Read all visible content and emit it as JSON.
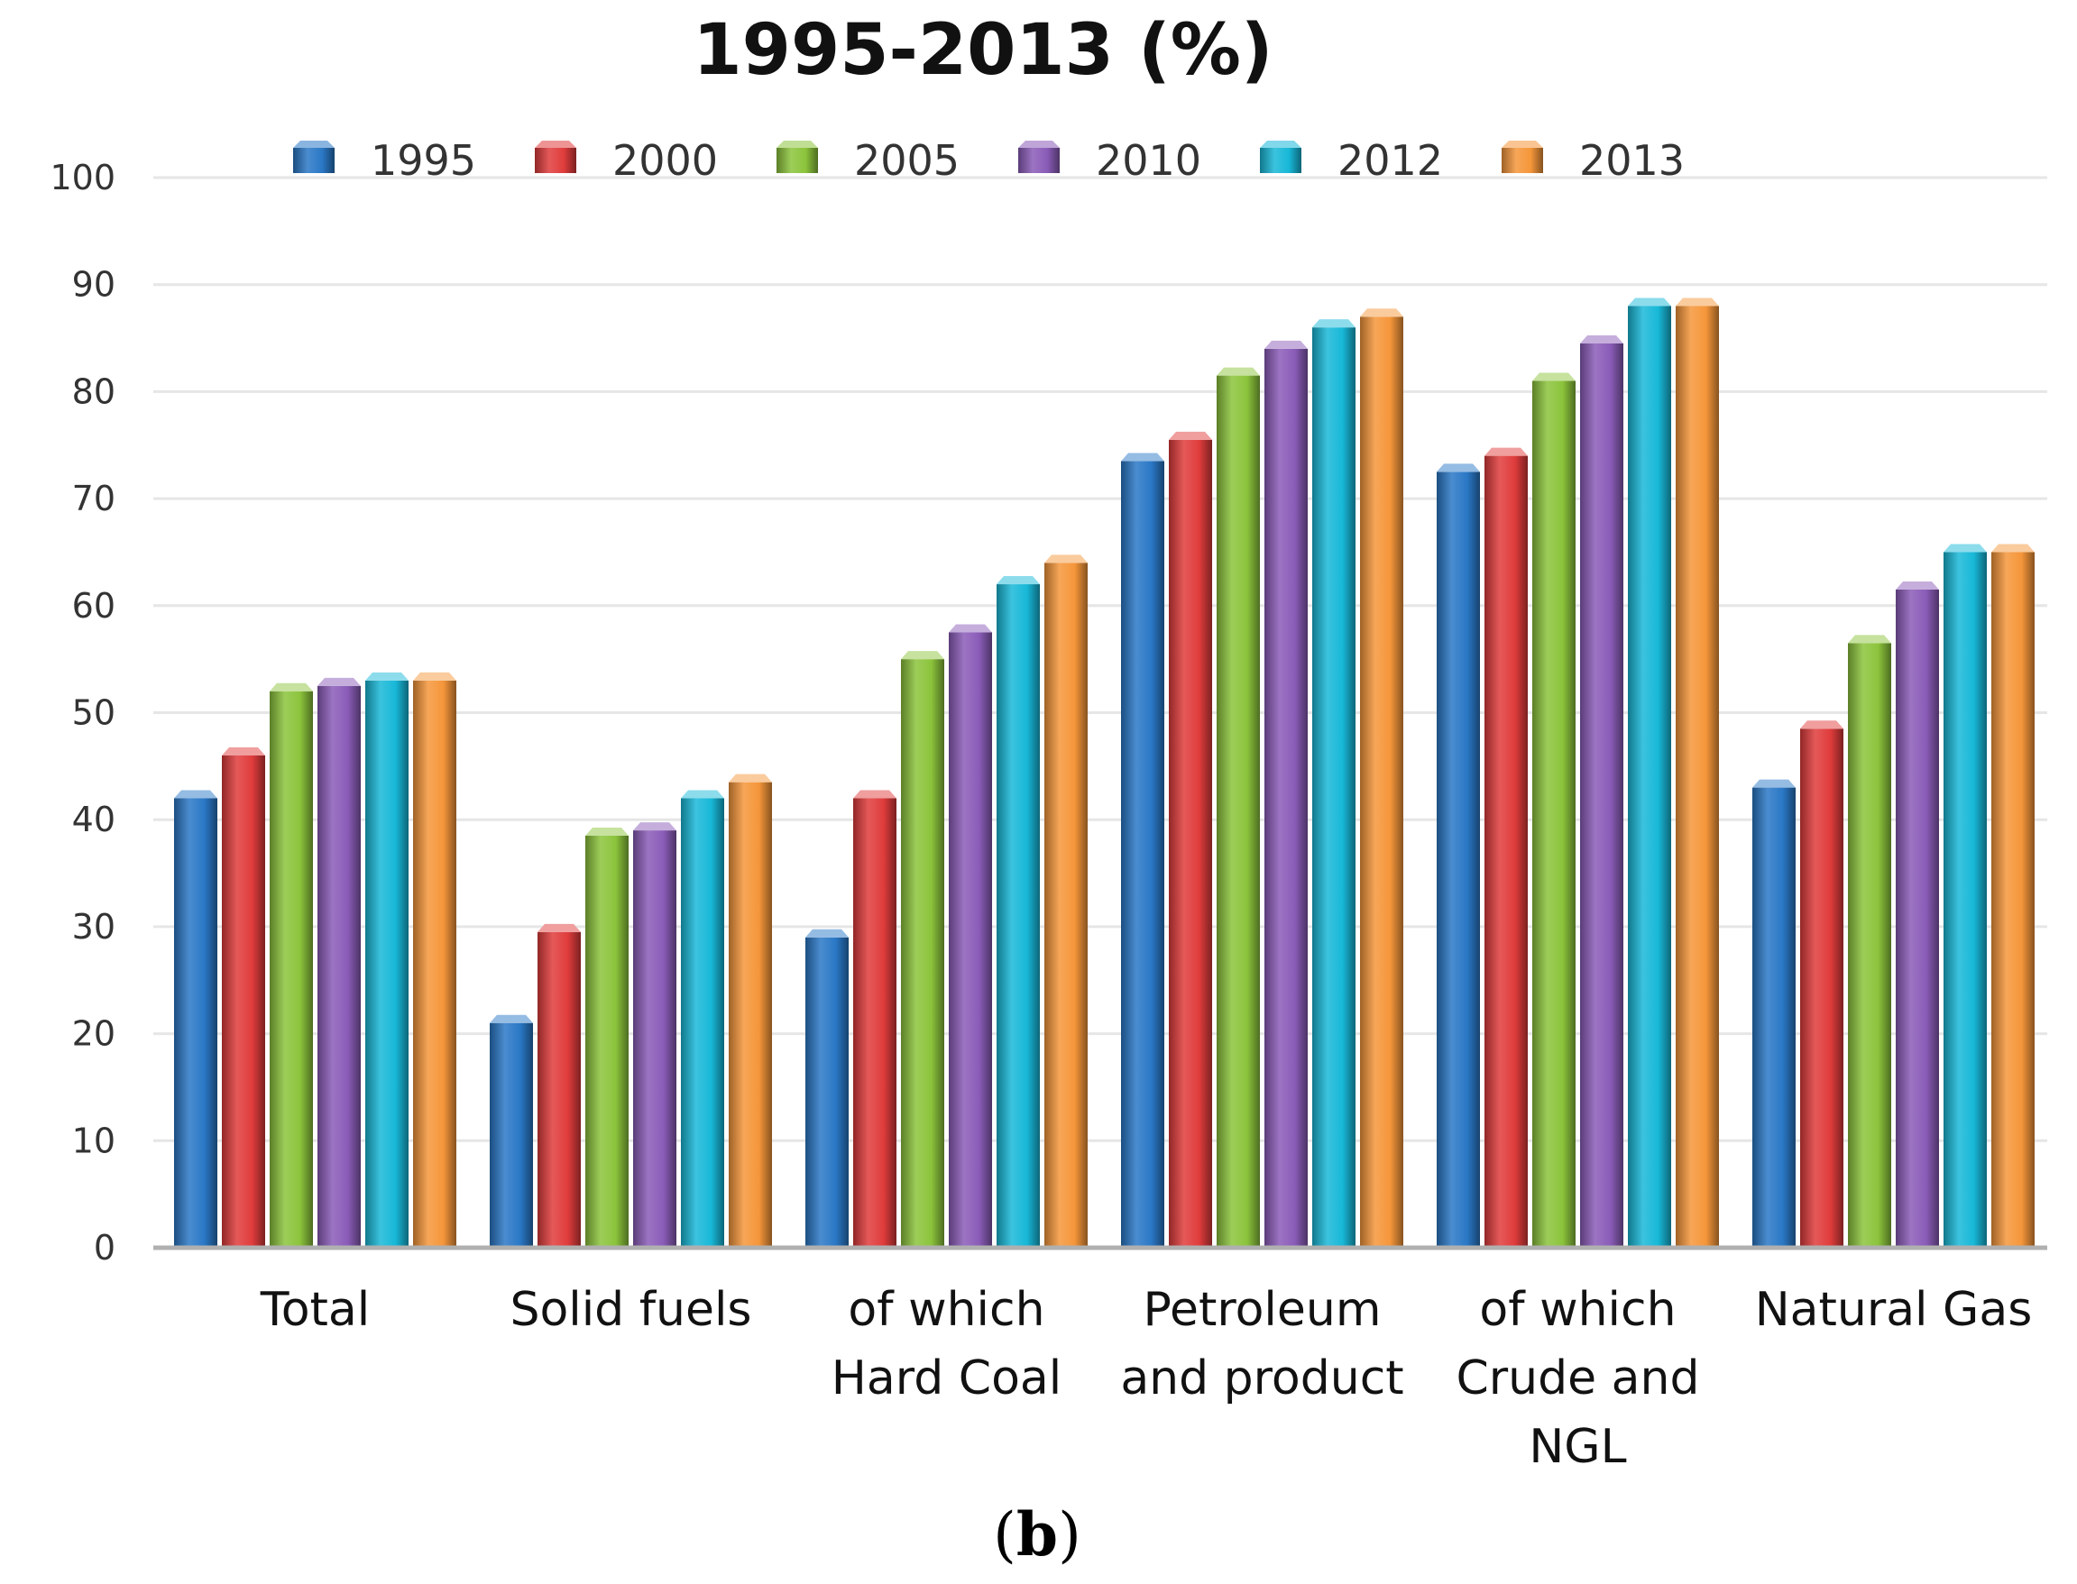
{
  "chart_data": {
    "type": "bar",
    "title": "1995-2013 (%)",
    "caption_text": "b",
    "caption_open": "(",
    "caption_close": ")",
    "categories": [
      [
        "Total"
      ],
      [
        "Solid fuels"
      ],
      [
        "of which",
        "Hard Coal"
      ],
      [
        "Petroleum",
        "and product"
      ],
      [
        "of which",
        "Crude and",
        "NGL"
      ],
      [
        "Natural Gas"
      ]
    ],
    "series": [
      {
        "name": "1995",
        "color": "#2a78c6",
        "values": [
          42,
          21,
          29,
          73.5,
          72.5,
          43
        ]
      },
      {
        "name": "2000",
        "color": "#e03c3c",
        "values": [
          46,
          29.5,
          42,
          75.5,
          74,
          48.5
        ]
      },
      {
        "name": "2005",
        "color": "#8cc43c",
        "values": [
          52,
          38.5,
          55,
          81.5,
          81,
          56.5
        ]
      },
      {
        "name": "2010",
        "color": "#8a5cb8",
        "values": [
          52.5,
          39,
          57.5,
          84,
          84.5,
          61.5
        ]
      },
      {
        "name": "2012",
        "color": "#18b8d8",
        "values": [
          53,
          42,
          62,
          86,
          88,
          65
        ]
      },
      {
        "name": "2013",
        "color": "#f5963a",
        "values": [
          53,
          43.5,
          64,
          87,
          88,
          65
        ]
      }
    ],
    "ylim": [
      0,
      100
    ],
    "yticks": [
      "0",
      "10",
      "20",
      "30",
      "40",
      "50",
      "60",
      "70",
      "80",
      "90",
      "100"
    ],
    "xlabel": "",
    "ylabel": "",
    "grid": true,
    "legend_position": "top"
  }
}
